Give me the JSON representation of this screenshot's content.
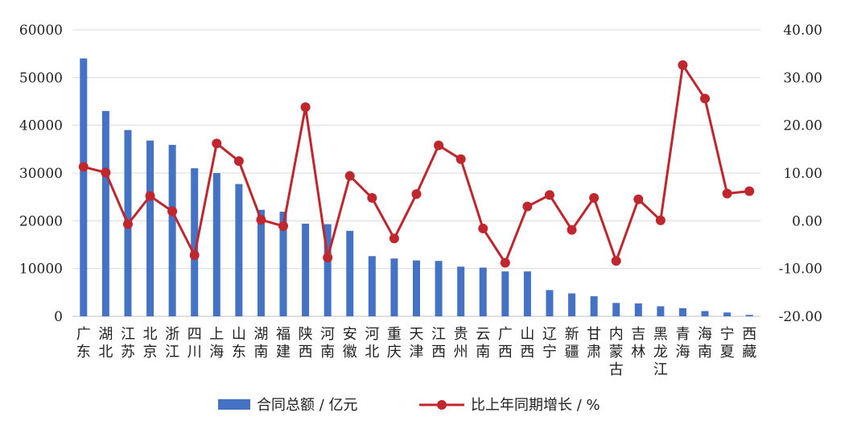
{
  "chart_data": {
    "type": "bar",
    "title": "",
    "categories": [
      "广东",
      "湖北",
      "江苏",
      "北京",
      "浙江",
      "四川",
      "上海",
      "山东",
      "湖南",
      "福建",
      "陕西",
      "河南",
      "安徽",
      "河北",
      "重庆",
      "天津",
      "江西",
      "贵州",
      "云南",
      "广西",
      "山西",
      "辽宁",
      "新疆",
      "甘肃",
      "内蒙古",
      "吉林",
      "黑龙江",
      "青海",
      "海南",
      "宁夏",
      "西藏"
    ],
    "series": [
      {
        "name": "合同总额 / 亿元",
        "type": "bar",
        "axis": "left",
        "color": "#4472c4",
        "values": [
          54000,
          43000,
          39000,
          36800,
          35900,
          31000,
          30000,
          27700,
          22300,
          21900,
          19400,
          19300,
          17900,
          12600,
          12100,
          11700,
          11600,
          10400,
          10200,
          9400,
          9400,
          5500,
          4800,
          4200,
          2800,
          2700,
          2100,
          1700,
          1100,
          800,
          300
        ]
      },
      {
        "name": "比上年同期增长 / %",
        "type": "line",
        "axis": "right",
        "color": "#c0262d",
        "values": [
          11.3,
          10.1,
          -0.7,
          5.2,
          2.0,
          -7.2,
          16.2,
          12.5,
          0.2,
          -1.1,
          23.8,
          -7.7,
          9.4,
          4.8,
          -3.7,
          5.6,
          15.8,
          12.9,
          -1.6,
          -8.8,
          3.0,
          5.4,
          -1.9,
          4.8,
          -8.4,
          4.5,
          0.1,
          32.6,
          25.6,
          5.7,
          6.2
        ]
      }
    ],
    "y_left": {
      "min": 0,
      "max": 60000,
      "ticks": [
        "0",
        "10000",
        "20000",
        "30000",
        "40000",
        "50000",
        "60000"
      ]
    },
    "y_right": {
      "min": -20,
      "max": 40,
      "ticks": [
        "-20.00",
        "-10.00",
        "0.00",
        "10.00",
        "20.00",
        "30.00",
        "40.00"
      ]
    },
    "grid": true,
    "legend": {
      "position": "bottom",
      "bar_label": "合同总额 / 亿元",
      "line_label": "比上年同期增长 / %"
    }
  }
}
